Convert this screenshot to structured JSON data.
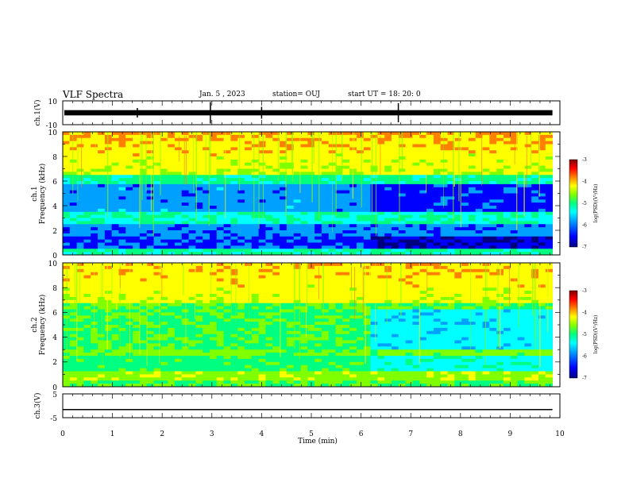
{
  "header": {
    "title": "VLF Spectra",
    "date": "Jan. 5 , 2023",
    "station": "station= OUJ",
    "start": "start UT = 18: 20: 0"
  },
  "colors": {
    "spectrogram_scale": [
      "#00007f",
      "#0000ff",
      "#00a0ff",
      "#00ffff",
      "#00ff80",
      "#80ff00",
      "#ffff00",
      "#ff8000",
      "#ff0000",
      "#800000"
    ],
    "trace": "#000000"
  },
  "chart_data": [
    {
      "type": "line",
      "name": "ch.1 waveform",
      "ylabel": "ch.1(V)",
      "ylim": [
        -10,
        10
      ],
      "yticks": [
        "10",
        "-10"
      ],
      "x": [
        0,
        10
      ],
      "y_level": 0,
      "xlim": [
        0,
        10
      ]
    },
    {
      "type": "heatmap",
      "name": "ch.1 spectrogram",
      "ylabel": "ch.1 Frequency (kHz)",
      "ylim": [
        0,
        10
      ],
      "yticks": [
        "10",
        "8",
        "6",
        "4",
        "2",
        "0"
      ],
      "xlim": [
        0,
        10
      ],
      "data_end_min": 9.85,
      "colorbar": {
        "label": "log(PSD)(V²/Hz)",
        "ticks": [
          "-3",
          "-4",
          "-5",
          "-6",
          "-7"
        ],
        "range": [
          -7,
          -3
        ]
      }
    },
    {
      "type": "heatmap",
      "name": "ch.2 spectrogram",
      "ylabel": "ch.2 Frequency (kHz)",
      "ylim": [
        0,
        10
      ],
      "yticks": [
        "10",
        "8",
        "6",
        "4",
        "2",
        "0"
      ],
      "xlim": [
        0,
        10
      ],
      "data_end_min": 9.85,
      "colorbar": {
        "label": "log(PSD)(V²/Hz)",
        "ticks": [
          "-3",
          "-4",
          "-5",
          "-6",
          "-7"
        ],
        "range": [
          -7,
          -3
        ]
      }
    },
    {
      "type": "line",
      "name": "ch.3 waveform",
      "ylabel": "ch.3(V)",
      "ylim": [
        -5,
        5
      ],
      "yticks": [
        "5",
        "-5"
      ],
      "x": [
        0,
        9.85
      ],
      "y": [
        -1.6,
        -1.6
      ],
      "xlim": [
        0,
        10
      ]
    }
  ],
  "xaxis": {
    "label": "Time (min)",
    "ticks": [
      "0",
      "1",
      "2",
      "3",
      "4",
      "5",
      "6",
      "7",
      "8",
      "9",
      "10"
    ]
  }
}
